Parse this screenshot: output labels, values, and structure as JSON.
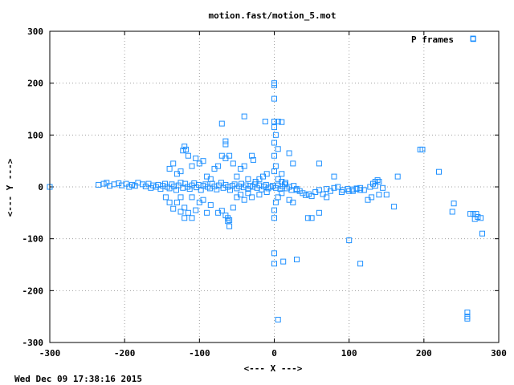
{
  "chart_data": {
    "type": "scatter",
    "title": "motion.fast/motion_5.mot",
    "xlabel": "<--- X --->",
    "ylabel": "<--- Y --->",
    "xlim": [
      -300,
      300
    ],
    "ylim": [
      -300,
      300
    ],
    "xticks": [
      "-300",
      "-200",
      "-100",
      "0",
      "100",
      "200",
      "300"
    ],
    "yticks": [
      "300",
      "200",
      "100",
      "0",
      "-100",
      "-200",
      "-300"
    ],
    "grid": true,
    "legend_position": "top-right",
    "marker": "hollow-square",
    "color": "#1e90ff",
    "series": [
      {
        "name": "P frames",
        "points": [
          [
            -300,
            0
          ],
          [
            -235,
            4
          ],
          [
            -228,
            6
          ],
          [
            -224,
            8
          ],
          [
            -220,
            2
          ],
          [
            -214,
            5
          ],
          [
            -208,
            7
          ],
          [
            -204,
            3
          ],
          [
            -198,
            6
          ],
          [
            -194,
            0
          ],
          [
            -190,
            4
          ],
          [
            -186,
            2
          ],
          [
            -182,
            8
          ],
          [
            -176,
            5
          ],
          [
            -172,
            1
          ],
          [
            -168,
            6
          ],
          [
            -165,
            -2
          ],
          [
            -162,
            3
          ],
          [
            -158,
            0
          ],
          [
            -155,
            4
          ],
          [
            -152,
            -4
          ],
          [
            -149,
            2
          ],
          [
            -146,
            6
          ],
          [
            -143,
            0
          ],
          [
            -140,
            -3
          ],
          [
            -137,
            5
          ],
          [
            -134,
            1
          ],
          [
            -131,
            -6
          ],
          [
            -128,
            3
          ],
          [
            -125,
            8
          ],
          [
            -122,
            -2
          ],
          [
            -119,
            6
          ],
          [
            -116,
            0
          ],
          [
            -113,
            -4
          ],
          [
            -110,
            3
          ],
          [
            -107,
            7
          ],
          [
            -104,
            -1
          ],
          [
            -101,
            4
          ],
          [
            -98,
            -6
          ],
          [
            -95,
            2
          ],
          [
            -92,
            5
          ],
          [
            -89,
            0
          ],
          [
            -86,
            -3
          ],
          [
            -83,
            6
          ],
          [
            -80,
            1
          ],
          [
            -77,
            -5
          ],
          [
            -74,
            3
          ],
          [
            -71,
            8
          ],
          [
            -68,
            -2
          ],
          [
            -65,
            4
          ],
          [
            -62,
            0
          ],
          [
            -59,
            -6
          ],
          [
            -56,
            2
          ],
          [
            -53,
            5
          ],
          [
            -50,
            -3
          ],
          [
            -47,
            1
          ],
          [
            -44,
            6
          ],
          [
            -41,
            -1
          ],
          [
            -38,
            3
          ],
          [
            -35,
            -4
          ],
          [
            -32,
            2
          ],
          [
            -29,
            0
          ],
          [
            -26,
            5
          ],
          [
            -23,
            -2
          ],
          [
            -20,
            3
          ],
          [
            -17,
            -5
          ],
          [
            -14,
            1
          ],
          [
            -11,
            4
          ],
          [
            -8,
            -3
          ],
          [
            -5,
            0
          ],
          [
            -2,
            2
          ],
          [
            2,
            -2
          ],
          [
            5,
            3
          ],
          [
            8,
            -4
          ],
          [
            11,
            1
          ],
          [
            14,
            5
          ],
          [
            17,
            -3
          ],
          [
            20,
            0
          ],
          [
            23,
            -6
          ],
          [
            26,
            2
          ],
          [
            30,
            -4
          ],
          [
            34,
            -8
          ],
          [
            38,
            -12
          ],
          [
            42,
            -16
          ],
          [
            46,
            -14
          ],
          [
            50,
            -18
          ],
          [
            55,
            -10
          ],
          [
            60,
            -6
          ],
          [
            65,
            -14
          ],
          [
            70,
            -4
          ],
          [
            75,
            -8
          ],
          [
            80,
            -2
          ],
          [
            85,
            0
          ],
          [
            92,
            -6
          ],
          [
            98,
            -4
          ],
          [
            105,
            -8
          ],
          [
            110,
            -4
          ],
          [
            115,
            -2
          ],
          [
            120,
            -6
          ],
          [
            128,
            0
          ],
          [
            132,
            6
          ],
          [
            135,
            2
          ],
          [
            140,
            10
          ],
          [
            145,
            -2
          ],
          [
            -120,
            78
          ],
          [
            -118,
            72
          ],
          [
            -122,
            70
          ],
          [
            -100,
            45
          ],
          [
            -105,
            55
          ],
          [
            -110,
            40
          ],
          [
            -95,
            50
          ],
          [
            -90,
            20
          ],
          [
            -125,
            30
          ],
          [
            -130,
            25
          ],
          [
            -135,
            45
          ],
          [
            -140,
            35
          ],
          [
            -115,
            60
          ],
          [
            -85,
            15
          ],
          [
            -80,
            35
          ],
          [
            -75,
            40
          ],
          [
            -70,
            60
          ],
          [
            -65,
            55
          ],
          [
            -60,
            60
          ],
          [
            -55,
            45
          ],
          [
            -50,
            20
          ],
          [
            -45,
            35
          ],
          [
            -40,
            40
          ],
          [
            -30,
            60
          ],
          [
            -28,
            52
          ],
          [
            -35,
            15
          ],
          [
            -25,
            10
          ],
          [
            -20,
            15
          ],
          [
            -15,
            20
          ],
          [
            -10,
            25
          ],
          [
            -65,
            88
          ],
          [
            -65,
            82
          ],
          [
            -70,
            122
          ],
          [
            -40,
            136
          ],
          [
            -12,
            126
          ],
          [
            0,
            200
          ],
          [
            0,
            196
          ],
          [
            0,
            170
          ],
          [
            0,
            126
          ],
          [
            0,
            115
          ],
          [
            2,
            100
          ],
          [
            0,
            85
          ],
          [
            5,
            73
          ],
          [
            10,
            125
          ],
          [
            5,
            126
          ],
          [
            10,
            25
          ],
          [
            0,
            60
          ],
          [
            2,
            40
          ],
          [
            0,
            30
          ],
          [
            5,
            15
          ],
          [
            10,
            10
          ],
          [
            15,
            8
          ],
          [
            20,
            65
          ],
          [
            25,
            45
          ],
          [
            30,
            -6
          ],
          [
            60,
            45
          ],
          [
            80,
            20
          ],
          [
            100,
            -8
          ],
          [
            105,
            -5
          ],
          [
            110,
            -3
          ],
          [
            115,
            -6
          ],
          [
            135,
            10
          ],
          [
            138,
            13
          ],
          [
            165,
            20
          ],
          [
            195,
            72
          ],
          [
            198,
            72
          ],
          [
            220,
            29
          ],
          [
            -120,
            -40
          ],
          [
            -115,
            -50
          ],
          [
            -110,
            -20
          ],
          [
            -105,
            -45
          ],
          [
            -100,
            -30
          ],
          [
            -95,
            -25
          ],
          [
            -90,
            -50
          ],
          [
            -85,
            -35
          ],
          [
            -75,
            -50
          ],
          [
            -70,
            -46
          ],
          [
            -65,
            -55
          ],
          [
            -62,
            -60
          ],
          [
            -60,
            -64
          ],
          [
            -62,
            -66
          ],
          [
            -60,
            -76
          ],
          [
            -55,
            -40
          ],
          [
            -50,
            -20
          ],
          [
            -45,
            -15
          ],
          [
            -40,
            -25
          ],
          [
            -35,
            -12
          ],
          [
            -125,
            -48
          ],
          [
            -130,
            -30
          ],
          [
            -135,
            -42
          ],
          [
            -140,
            -30
          ],
          [
            -145,
            -20
          ],
          [
            -120,
            -60
          ],
          [
            -110,
            -60
          ],
          [
            -125,
            -20
          ],
          [
            -30,
            -20
          ],
          [
            -20,
            -15
          ],
          [
            -10,
            -10
          ],
          [
            0,
            -45
          ],
          [
            0,
            -60
          ],
          [
            2,
            -30
          ],
          [
            5,
            -20
          ],
          [
            10,
            -12
          ],
          [
            20,
            -25
          ],
          [
            25,
            -30
          ],
          [
            45,
            -60
          ],
          [
            50,
            -60
          ],
          [
            60,
            -50
          ],
          [
            70,
            -20
          ],
          [
            90,
            -10
          ],
          [
            100,
            -103
          ],
          [
            115,
            -148
          ],
          [
            125,
            -25
          ],
          [
            130,
            -20
          ],
          [
            140,
            -15
          ],
          [
            150,
            -15
          ],
          [
            160,
            -38
          ],
          [
            0,
            -128
          ],
          [
            0,
            -148
          ],
          [
            12,
            -144
          ],
          [
            30,
            -140
          ],
          [
            5,
            -256
          ],
          [
            240,
            -32
          ],
          [
            238,
            -48
          ],
          [
            262,
            -52
          ],
          [
            266,
            -52
          ],
          [
            270,
            -52
          ],
          [
            272,
            -58
          ],
          [
            276,
            -60
          ],
          [
            268,
            -62
          ],
          [
            278,
            -90
          ],
          [
            258,
            -242
          ],
          [
            258,
            -250
          ],
          [
            258,
            -254
          ],
          [
            266,
            285
          ]
        ]
      }
    ]
  },
  "footer": {
    "timestamp": "Wed Dec 09 17:38:16 2015"
  }
}
